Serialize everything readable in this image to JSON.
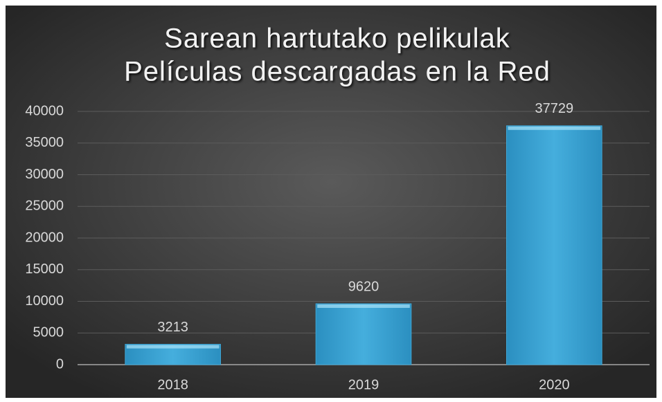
{
  "chart_data": {
    "type": "bar",
    "title": [
      "Sarean hartutako pelikulak",
      "Películas descargadas en la Red"
    ],
    "categories": [
      "2018",
      "2019",
      "2020"
    ],
    "values": [
      3213,
      9620,
      37729
    ],
    "color": "#3fa7d6",
    "ylim": [
      0,
      40000
    ],
    "yticks": [
      0,
      5000,
      10000,
      15000,
      20000,
      25000,
      30000,
      35000,
      40000
    ],
    "grid": true
  }
}
